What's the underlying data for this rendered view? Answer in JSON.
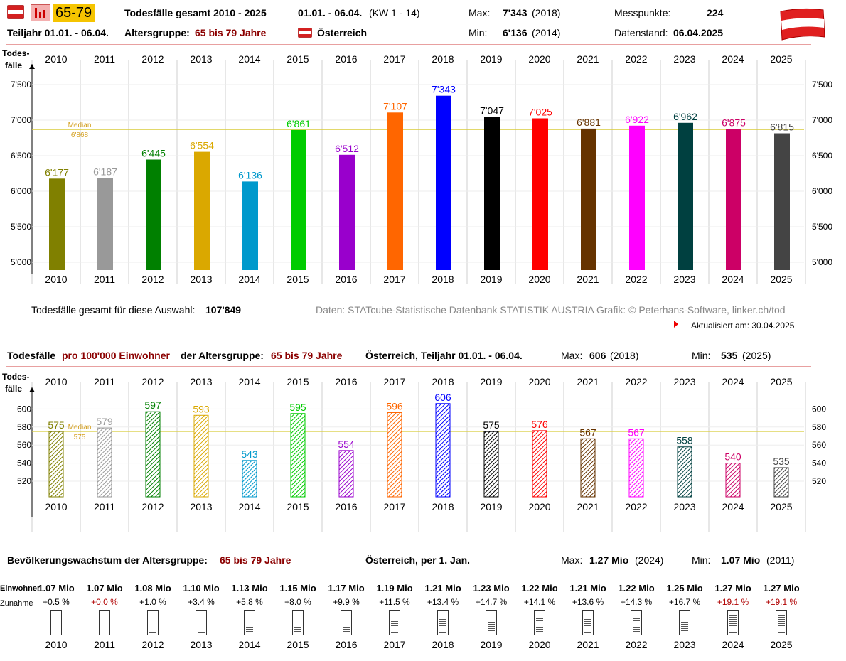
{
  "header": {
    "age_badge": "65-79",
    "title": "Todesfälle gesamt 2010 - 2025",
    "period": "01.01. - 06.04.",
    "kw": "(KW 1 - 14)",
    "max_label": "Max:",
    "max_value": "7'343",
    "max_year": "(2018)",
    "min_label": "Min:",
    "min_value": "6'136",
    "min_year": "(2014)",
    "messpunkte_label": "Messpunkte:",
    "messpunkte_value": "224",
    "teiljahr": "Teiljahr 01.01. - 06.04.",
    "altersgruppe_label": "Altersgruppe:",
    "altersgruppe_value": "65 bis 79 Jahre",
    "country": "Österreich",
    "datenstand_label": "Datenstand:",
    "datenstand_value": "06.04.2025"
  },
  "info": {
    "total_label": "Todesfälle gesamt für diese Auswahl:",
    "total_value": "107'849",
    "source": "Daten: STATcube-Statistische Datenbank STATISTIK AUSTRIA  Grafik: © Peterhans-Software, linker.ch/tod",
    "updated": "Aktualisiert am: 30.04.2025"
  },
  "section2": {
    "title_a": "Todesfälle",
    "title_b": "pro 100'000 Einwohner",
    "title_c": "der Altersgruppe:",
    "title_d": "65 bis 79 Jahre",
    "region": "Österreich, Teiljahr 01.01. - 06.04.",
    "max_label": "Max:",
    "max_value": "606",
    "max_year": "(2018)",
    "min_label": "Min:",
    "min_value": "535",
    "min_year": "(2025)"
  },
  "section3": {
    "title_a": "Bevölkerungswachstum der Altersgruppe:",
    "title_b": "65 bis 79 Jahre",
    "region": "Österreich, per 1. Jan.",
    "max_label": "Max:",
    "max_value": "1.27 Mio",
    "max_year": "(2024)",
    "min_label": "Min:",
    "min_value": "1.07 Mio",
    "min_year": "(2011)",
    "row_label_1": "Einwohner",
    "row_label_2": "Zunahme"
  },
  "colors": [
    "#808000",
    "#999999",
    "#008000",
    "#daa800",
    "#0099cc",
    "#00cc00",
    "#9900cc",
    "#ff6600",
    "#0000ff",
    "#000000",
    "#ff0000",
    "#663300",
    "#ff00ff",
    "#004040",
    "#cc0066",
    "#444444"
  ],
  "chart_data": [
    {
      "type": "bar",
      "ylabel": "Todes-fälle",
      "categories": [
        "2010",
        "2011",
        "2012",
        "2013",
        "2014",
        "2015",
        "2016",
        "2017",
        "2018",
        "2019",
        "2020",
        "2021",
        "2022",
        "2023",
        "2024",
        "2025"
      ],
      "values": [
        6177,
        6187,
        6445,
        6554,
        6136,
        6861,
        6512,
        7107,
        7343,
        7047,
        7025,
        6881,
        6922,
        6962,
        6875,
        6815
      ],
      "value_labels": [
        "6'177",
        "6'187",
        "6'445",
        "6'554",
        "6'136",
        "6'861",
        "6'512",
        "7'107",
        "7'343",
        "7'047",
        "7'025",
        "6'881",
        "6'922",
        "6'962",
        "6'875",
        "6'815"
      ],
      "y_ticks": [
        5000,
        5500,
        6000,
        6500,
        7000,
        7500
      ],
      "y_tick_labels": [
        "5'000",
        "5'500",
        "6'000",
        "6'500",
        "7'000",
        "7'500"
      ],
      "ylim": [
        4900,
        7700
      ],
      "median": 6868,
      "median_label": "Median",
      "median_value_label": "6'868",
      "grid": true
    },
    {
      "type": "bar",
      "ylabel": "Todes-fälle",
      "categories": [
        "2010",
        "2011",
        "2012",
        "2013",
        "2014",
        "2015",
        "2016",
        "2017",
        "2018",
        "2019",
        "2020",
        "2021",
        "2022",
        "2023",
        "2024",
        "2025"
      ],
      "values": [
        575,
        579,
        597,
        593,
        543,
        595,
        554,
        596,
        606,
        575,
        576,
        567,
        567,
        558,
        540,
        535
      ],
      "value_labels": [
        "575",
        "579",
        "597",
        "593",
        "543",
        "595",
        "554",
        "596",
        "606",
        "575",
        "576",
        "567",
        "567",
        "558",
        "540",
        "535"
      ],
      "y_ticks": [
        520,
        540,
        560,
        580,
        600
      ],
      "y_tick_labels": [
        "520",
        "540",
        "560",
        "580",
        "600"
      ],
      "ylim": [
        504,
        614
      ],
      "median": 575,
      "median_label": "Median",
      "median_value_label": "575",
      "grid": true
    },
    {
      "type": "table",
      "categories": [
        "2010",
        "2011",
        "2012",
        "2013",
        "2014",
        "2015",
        "2016",
        "2017",
        "2018",
        "2019",
        "2020",
        "2021",
        "2022",
        "2023",
        "2024",
        "2025"
      ],
      "population": [
        "1.07 Mio",
        "1.07 Mio",
        "1.08 Mio",
        "1.10 Mio",
        "1.13 Mio",
        "1.15 Mio",
        "1.17 Mio",
        "1.19 Mio",
        "1.21 Mio",
        "1.23 Mio",
        "1.22 Mio",
        "1.21 Mio",
        "1.22 Mio",
        "1.25 Mio",
        "1.27 Mio",
        "1.27 Mio"
      ],
      "growth": [
        "+0.5 %",
        "+0.0 %",
        "+1.0 %",
        "+3.4 %",
        "+5.8 %",
        "+8.0 %",
        "+9.9 %",
        "+11.5 %",
        "+13.4 %",
        "+14.7 %",
        "+14.1 %",
        "+13.6 %",
        "+14.3 %",
        "+16.7 %",
        "+19.1 %",
        "+19.1 %"
      ],
      "growth_values": [
        0.5,
        0.0,
        1.0,
        3.4,
        5.8,
        8.0,
        9.9,
        11.5,
        13.4,
        14.7,
        14.1,
        13.6,
        14.3,
        16.7,
        19.1,
        19.1
      ],
      "growth_highlight": [
        false,
        true,
        false,
        false,
        false,
        false,
        false,
        false,
        false,
        false,
        false,
        false,
        false,
        false,
        true,
        true
      ]
    }
  ]
}
